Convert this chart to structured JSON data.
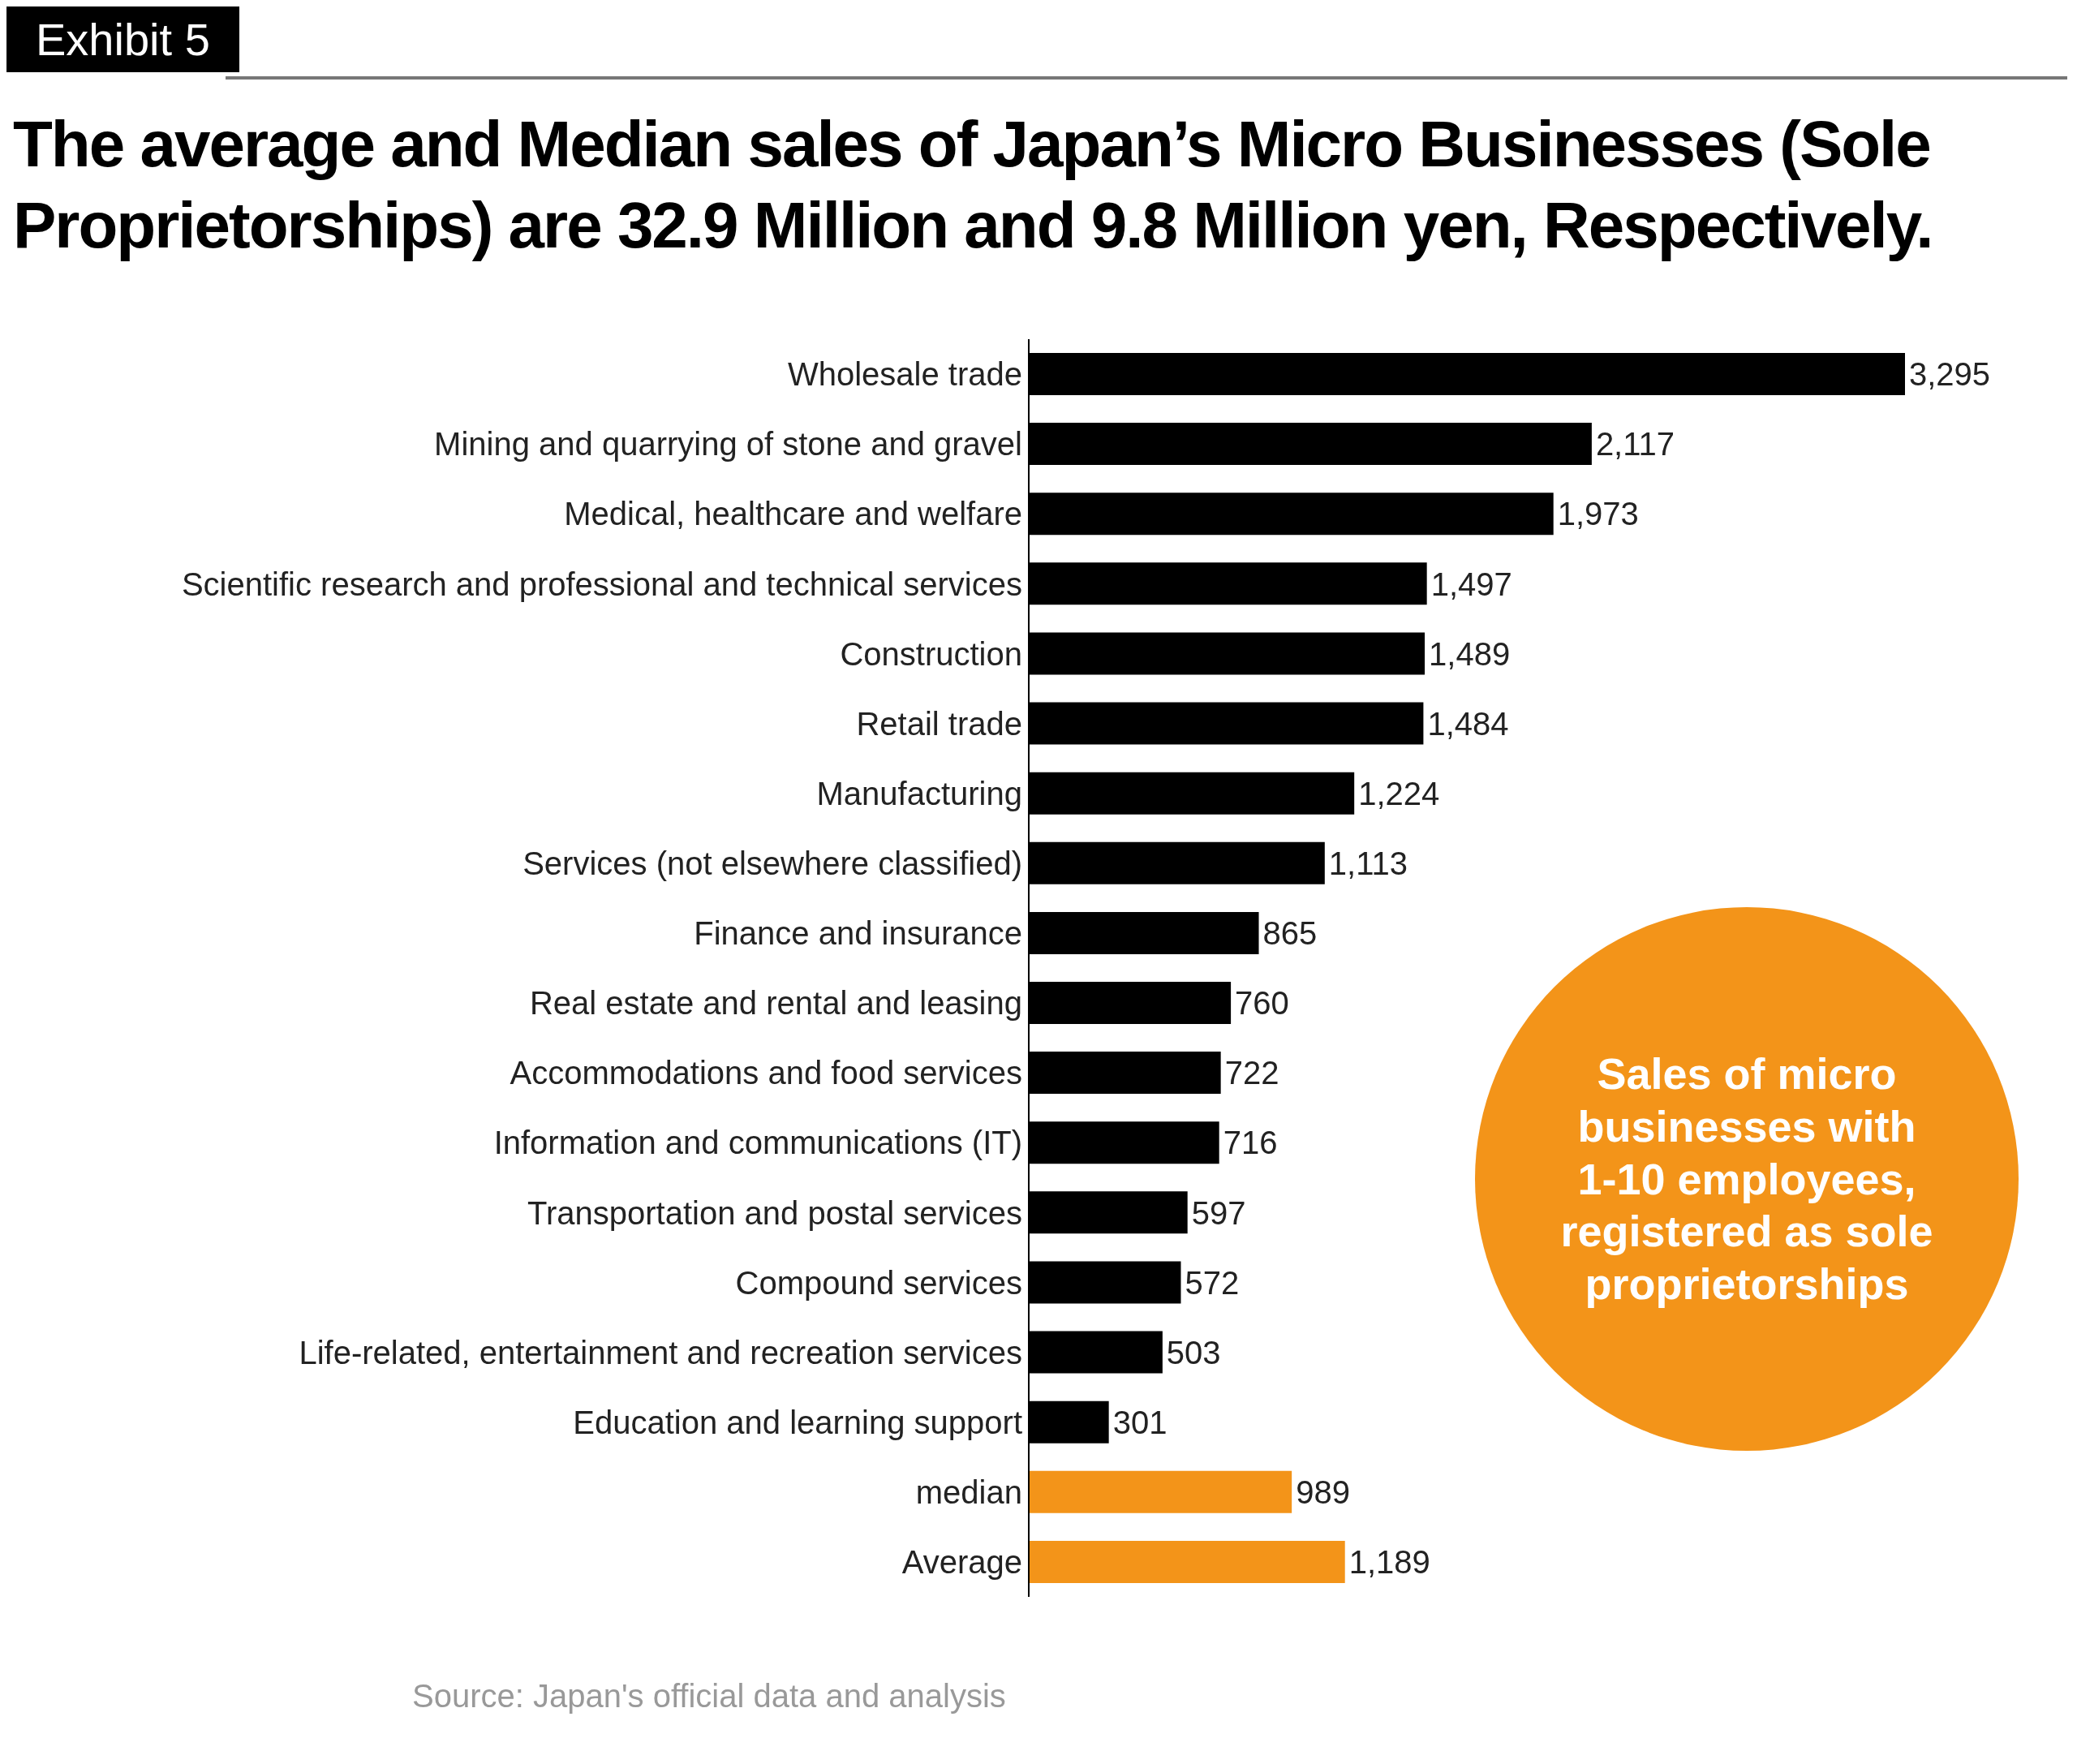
{
  "chart_data": {
    "type": "bar",
    "orientation": "horizontal",
    "title": "The average and Median sales of Japan’s Micro Businesses (Sole Proprietorships) are 32.9 Million and 9.8 Million yen, Respectively.",
    "categories": [
      "Wholesale trade",
      "Mining and quarrying of stone and gravel",
      "Medical, healthcare and welfare",
      "Scientific research and professional and technical services",
      "Construction",
      "Retail trade",
      "Manufacturing",
      "Services (not elsewhere classified)",
      "Finance and insurance",
      "Real estate and rental and leasing",
      "Accommodations and food services",
      "Information and communications (IT)",
      "Transportation and postal services",
      "Compound services",
      "Life-related, entertainment and recreation services",
      "Education and learning support",
      "median",
      "Average"
    ],
    "values": [
      3295,
      2117,
      1973,
      1497,
      1489,
      1484,
      1224,
      1113,
      865,
      760,
      722,
      716,
      597,
      572,
      503,
      301,
      989,
      1189
    ],
    "value_labels": [
      "3,295",
      "2,117",
      "1,973",
      "1,497",
      "1,489",
      "1,484",
      "1,224",
      "1,113",
      "865",
      "760",
      "722",
      "716",
      "597",
      "572",
      "503",
      "301",
      "989",
      "1,189"
    ],
    "colors": [
      "#000000",
      "#000000",
      "#000000",
      "#000000",
      "#000000",
      "#000000",
      "#000000",
      "#000000",
      "#000000",
      "#000000",
      "#000000",
      "#000000",
      "#000000",
      "#000000",
      "#000000",
      "#000000",
      "#f39419",
      "#f39419"
    ],
    "annotations": [
      "Exhibit 5",
      "Sales of micro businesses with 1-10 employees, registered as sole proprietorships",
      "Source: Japan's official data and analysis"
    ]
  }
}
